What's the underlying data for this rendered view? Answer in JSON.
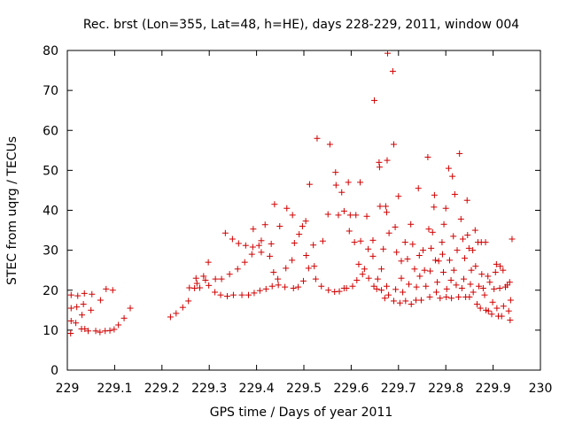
{
  "chart_data": {
    "type": "scatter",
    "title": "Rec. brst (Lon=355, Lat=48, h=HE), days 228-229, 2011, window 004",
    "xlabel": "GPS time / Days of year 2011",
    "ylabel": "STEC from uqrg / TECUs",
    "xlim": [
      229,
      230
    ],
    "ylim": [
      0,
      80
    ],
    "x_ticks": [
      "229",
      "229.1",
      "229.2",
      "229.3",
      "229.4",
      "229.5",
      "229.6",
      "229.7",
      "229.8",
      "229.9",
      "230"
    ],
    "y_ticks": [
      "0",
      "10",
      "20",
      "30",
      "40",
      "50",
      "60",
      "70",
      "80"
    ],
    "grid": false,
    "legend": "none",
    "marker": "+",
    "color": "#d00000",
    "points": [
      [
        229.007,
        9.2
      ],
      [
        229.008,
        12.3
      ],
      [
        229.008,
        15.5
      ],
      [
        229.008,
        18.8
      ],
      [
        229.018,
        11.8
      ],
      [
        229.02,
        15.8
      ],
      [
        229.022,
        18.6
      ],
      [
        229.03,
        10.3
      ],
      [
        229.031,
        13.8
      ],
      [
        229.034,
        16.5
      ],
      [
        229.036,
        19.2
      ],
      [
        229.037,
        10.3
      ],
      [
        229.044,
        9.8
      ],
      [
        229.05,
        15.0
      ],
      [
        229.052,
        19.0
      ],
      [
        229.06,
        9.8
      ],
      [
        229.069,
        9.5
      ],
      [
        229.07,
        17.5
      ],
      [
        229.08,
        9.8
      ],
      [
        229.082,
        20.3
      ],
      [
        229.09,
        9.9
      ],
      [
        229.096,
        20.0
      ],
      [
        229.099,
        10.2
      ],
      [
        229.108,
        11.3
      ],
      [
        229.12,
        13.0
      ],
      [
        229.133,
        15.5
      ],
      [
        229.218,
        13.3
      ],
      [
        229.23,
        14.2
      ],
      [
        229.244,
        15.7
      ],
      [
        229.256,
        17.3
      ],
      [
        229.258,
        20.6
      ],
      [
        229.269,
        20.5
      ],
      [
        229.272,
        23.0
      ],
      [
        229.274,
        21.7
      ],
      [
        229.28,
        20.6
      ],
      [
        229.288,
        23.5
      ],
      [
        229.292,
        22.5
      ],
      [
        229.298,
        27.0
      ],
      [
        229.299,
        21.2
      ],
      [
        229.312,
        19.5
      ],
      [
        229.313,
        22.8
      ],
      [
        229.324,
        18.8
      ],
      [
        229.326,
        22.8
      ],
      [
        229.334,
        34.3
      ],
      [
        229.338,
        18.5
      ],
      [
        229.343,
        24.0
      ],
      [
        229.349,
        32.8
      ],
      [
        229.351,
        18.8
      ],
      [
        229.36,
        25.3
      ],
      [
        229.362,
        31.7
      ],
      [
        229.369,
        18.8
      ],
      [
        229.375,
        27.0
      ],
      [
        229.377,
        31.2
      ],
      [
        229.383,
        18.8
      ],
      [
        229.39,
        29.0
      ],
      [
        229.392,
        30.8
      ],
      [
        229.393,
        35.3
      ],
      [
        229.395,
        19.3
      ],
      [
        229.405,
        31.2
      ],
      [
        229.407,
        19.9
      ],
      [
        229.41,
        29.5
      ],
      [
        229.41,
        32.4
      ],
      [
        229.418,
        36.4
      ],
      [
        229.42,
        20.3
      ],
      [
        229.428,
        28.5
      ],
      [
        229.431,
        31.6
      ],
      [
        229.433,
        21.0
      ],
      [
        229.436,
        24.5
      ],
      [
        229.438,
        41.5
      ],
      [
        229.445,
        22.8
      ],
      [
        229.446,
        21.3
      ],
      [
        229.449,
        36.0
      ],
      [
        229.46,
        20.8
      ],
      [
        229.462,
        25.5
      ],
      [
        229.464,
        40.5
      ],
      [
        229.475,
        27.5
      ],
      [
        229.476,
        38.8
      ],
      [
        229.478,
        20.5
      ],
      [
        229.48,
        31.8
      ],
      [
        229.488,
        20.8
      ],
      [
        229.49,
        34.0
      ],
      [
        229.497,
        36.0
      ],
      [
        229.499,
        22.3
      ],
      [
        229.504,
        37.3
      ],
      [
        229.505,
        28.7
      ],
      [
        229.51,
        25.5
      ],
      [
        229.512,
        46.5
      ],
      [
        229.52,
        31.3
      ],
      [
        229.522,
        26.0
      ],
      [
        229.525,
        22.8
      ],
      [
        229.528,
        58.0
      ],
      [
        229.537,
        21.0
      ],
      [
        229.54,
        32.3
      ],
      [
        229.551,
        39.0
      ],
      [
        229.552,
        20.0
      ],
      [
        229.555,
        56.5
      ],
      [
        229.565,
        19.6
      ],
      [
        229.567,
        49.5
      ],
      [
        229.568,
        46.3
      ],
      [
        229.573,
        38.8
      ],
      [
        229.575,
        19.7
      ],
      [
        229.58,
        44.5
      ],
      [
        229.585,
        20.5
      ],
      [
        229.585,
        39.8
      ],
      [
        229.59,
        20.5
      ],
      [
        229.594,
        47.0
      ],
      [
        229.596,
        34.8
      ],
      [
        229.598,
        38.8
      ],
      [
        229.603,
        21.0
      ],
      [
        229.607,
        32.0
      ],
      [
        229.61,
        38.8
      ],
      [
        229.612,
        22.5
      ],
      [
        229.616,
        26.5
      ],
      [
        229.619,
        47.0
      ],
      [
        229.62,
        32.3
      ],
      [
        229.624,
        24.0
      ],
      [
        229.628,
        25.3
      ],
      [
        229.633,
        38.5
      ],
      [
        229.636,
        30.3
      ],
      [
        229.637,
        23.0
      ],
      [
        229.646,
        32.5
      ],
      [
        229.646,
        28.5
      ],
      [
        229.648,
        21.0
      ],
      [
        229.649,
        67.5
      ],
      [
        229.654,
        20.3
      ],
      [
        229.656,
        22.8
      ],
      [
        229.659,
        52.0
      ],
      [
        229.66,
        50.8
      ],
      [
        229.661,
        41.0
      ],
      [
        229.664,
        20.0
      ],
      [
        229.664,
        25.3
      ],
      [
        229.668,
        30.3
      ],
      [
        229.671,
        18.0
      ],
      [
        229.673,
        41.0
      ],
      [
        229.675,
        21.0
      ],
      [
        229.675,
        39.5
      ],
      [
        229.676,
        52.5
      ],
      [
        229.677,
        79.3
      ],
      [
        229.679,
        18.8
      ],
      [
        229.68,
        34.3
      ],
      [
        229.688,
        74.8
      ],
      [
        229.69,
        56.5
      ],
      [
        229.69,
        17.3
      ],
      [
        229.693,
        35.8
      ],
      [
        229.694,
        20.2
      ],
      [
        229.696,
        29.5
      ],
      [
        229.7,
        43.5
      ],
      [
        229.703,
        16.8
      ],
      [
        229.706,
        27.3
      ],
      [
        229.706,
        23.0
      ],
      [
        229.709,
        19.5
      ],
      [
        229.714,
        32.0
      ],
      [
        229.715,
        17.3
      ],
      [
        229.719,
        27.8
      ],
      [
        229.722,
        21.5
      ],
      [
        229.726,
        36.5
      ],
      [
        229.727,
        16.5
      ],
      [
        229.73,
        31.5
      ],
      [
        229.734,
        25.3
      ],
      [
        229.737,
        17.5
      ],
      [
        229.738,
        20.8
      ],
      [
        229.742,
        45.5
      ],
      [
        229.744,
        28.7
      ],
      [
        229.745,
        23.5
      ],
      [
        229.748,
        17.5
      ],
      [
        229.752,
        30.0
      ],
      [
        229.755,
        25.0
      ],
      [
        229.758,
        21.0
      ],
      [
        229.762,
        53.3
      ],
      [
        229.764,
        35.3
      ],
      [
        229.766,
        18.3
      ],
      [
        229.767,
        24.8
      ],
      [
        229.769,
        30.5
      ],
      [
        229.772,
        34.5
      ],
      [
        229.775,
        40.8
      ],
      [
        229.776,
        43.8
      ],
      [
        229.778,
        27.5
      ],
      [
        229.78,
        19.5
      ],
      [
        229.782,
        22.0
      ],
      [
        229.785,
        27.3
      ],
      [
        229.788,
        18.0
      ],
      [
        229.792,
        32.0
      ],
      [
        229.793,
        29.0
      ],
      [
        229.795,
        24.5
      ],
      [
        229.796,
        36.5
      ],
      [
        229.8,
        40.5
      ],
      [
        229.801,
        18.3
      ],
      [
        229.802,
        20.3
      ],
      [
        229.806,
        50.5
      ],
      [
        229.808,
        27.5
      ],
      [
        229.811,
        22.5
      ],
      [
        229.812,
        18.0
      ],
      [
        229.814,
        48.5
      ],
      [
        229.816,
        33.5
      ],
      [
        229.817,
        25.0
      ],
      [
        229.819,
        44.0
      ],
      [
        229.822,
        21.3
      ],
      [
        229.824,
        30.0
      ],
      [
        229.827,
        18.3
      ],
      [
        229.829,
        54.2
      ],
      [
        229.832,
        37.8
      ],
      [
        229.834,
        20.5
      ],
      [
        229.836,
        32.8
      ],
      [
        229.838,
        22.8
      ],
      [
        229.84,
        28.0
      ],
      [
        229.842,
        18.3
      ],
      [
        229.845,
        42.5
      ],
      [
        229.846,
        33.8
      ],
      [
        229.849,
        30.5
      ],
      [
        229.85,
        18.3
      ],
      [
        229.852,
        21.5
      ],
      [
        229.854,
        25.0
      ],
      [
        229.857,
        30.0
      ],
      [
        229.858,
        19.5
      ],
      [
        229.862,
        35.0
      ],
      [
        229.863,
        26.0
      ],
      [
        229.866,
        16.5
      ],
      [
        229.868,
        32.0
      ],
      [
        229.87,
        21.0
      ],
      [
        229.873,
        15.5
      ],
      [
        229.875,
        32.0
      ],
      [
        229.876,
        24.0
      ],
      [
        229.879,
        20.5
      ],
      [
        229.882,
        18.8
      ],
      [
        229.884,
        32.0
      ],
      [
        229.885,
        15.0
      ],
      [
        229.889,
        23.5
      ],
      [
        229.89,
        14.8
      ],
      [
        229.893,
        22.0
      ],
      [
        229.897,
        14.0
      ],
      [
        229.899,
        17.0
      ],
      [
        229.902,
        20.3
      ],
      [
        229.905,
        24.5
      ],
      [
        229.907,
        26.5
      ],
      [
        229.908,
        15.5
      ],
      [
        229.911,
        13.5
      ],
      [
        229.914,
        20.5
      ],
      [
        229.915,
        26.0
      ],
      [
        229.918,
        13.5
      ],
      [
        229.921,
        25.0
      ],
      [
        229.922,
        16.0
      ],
      [
        229.926,
        20.8
      ],
      [
        229.93,
        21.3
      ],
      [
        229.933,
        14.8
      ],
      [
        229.935,
        22.0
      ],
      [
        229.936,
        12.5
      ],
      [
        229.937,
        17.5
      ],
      [
        229.94,
        32.8
      ]
    ]
  }
}
